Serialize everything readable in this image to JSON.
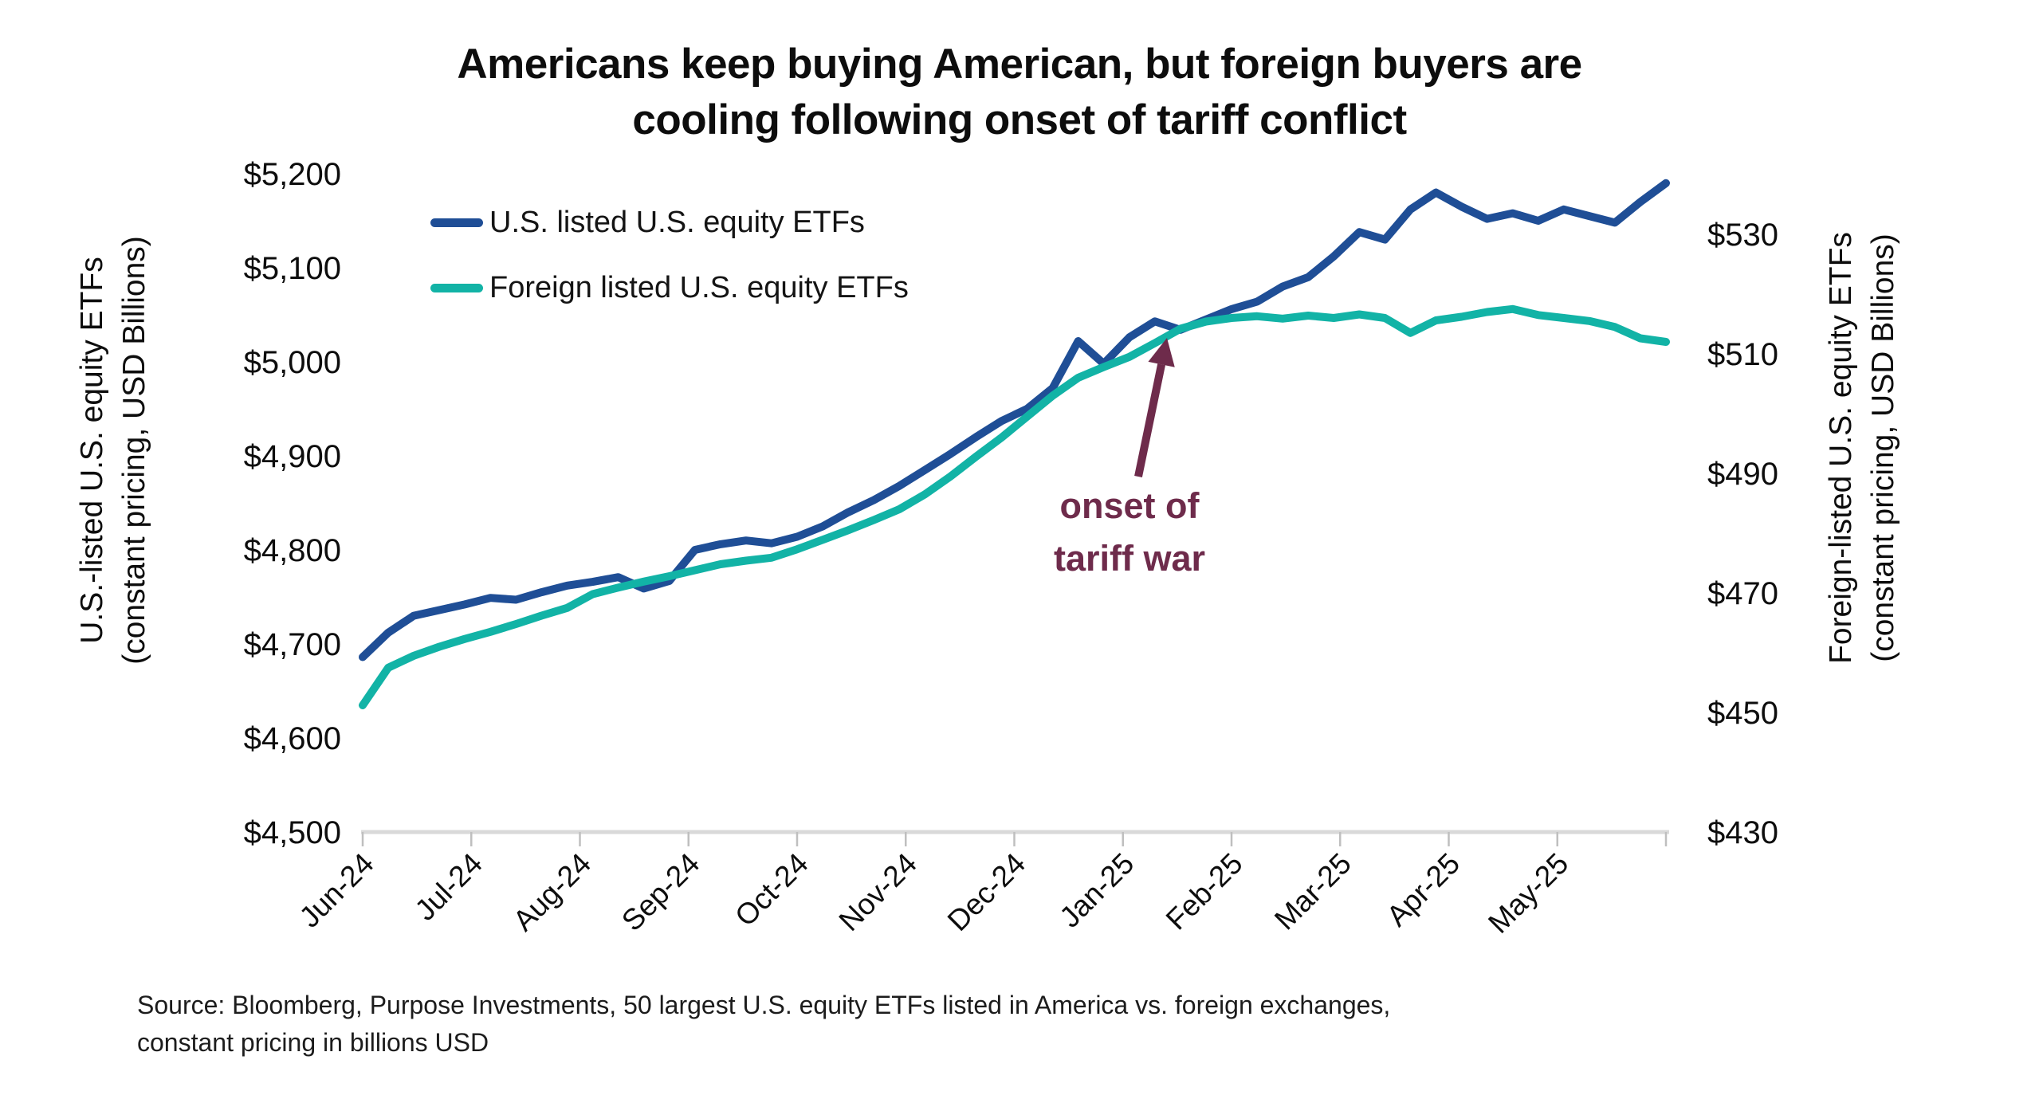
{
  "title": {
    "line1": "Americans keep buying American, but foreign buyers are",
    "line2": "cooling following onset of tariff conflict"
  },
  "legend": {
    "items": [
      {
        "label": "U.S. listed U.S. equity ETFs",
        "color": "#1F4E96"
      },
      {
        "label": "Foreign listed U.S. equity ETFs",
        "color": "#12B3A6"
      }
    ]
  },
  "left_axis": {
    "title_line1": "U.S.-listed U.S. equity ETFs",
    "title_line2": "(constant pricing, USD Billions)",
    "tick_labels": [
      "$4,500",
      "$4,600",
      "$4,700",
      "$4,800",
      "$4,900",
      "$5,000",
      "$5,100",
      "$5,200"
    ],
    "min": 4500,
    "max": 5200,
    "step": 100
  },
  "right_axis": {
    "title_line1": "Foreign-listed U.S. equity ETFs",
    "title_line2": "(constant pricing, USD Billions)",
    "tick_labels": [
      "$430",
      "$450",
      "$470",
      "$490",
      "$510",
      "$530"
    ],
    "min": 430,
    "max": 530,
    "step": 20
  },
  "x_axis": {
    "labels": [
      "Jun-24",
      "Jul-24",
      "Aug-24",
      "Sep-24",
      "Oct-24",
      "Nov-24",
      "Dec-24",
      "Jan-25",
      "Feb-25",
      "Mar-25",
      "Apr-25",
      "May-25"
    ]
  },
  "annotation": {
    "line1": "onset of",
    "line2": "tariff war",
    "color": "#6E2B4B"
  },
  "source": {
    "line1": "Source: Bloomberg, Purpose Investments, 50 largest U.S. equity ETFs listed in America vs. foreign exchanges,",
    "line2": "constant pricing in billions USD"
  },
  "chart_data": {
    "type": "line",
    "x_frequency": "weekly",
    "x_month_labels": [
      "Jun-24",
      "Jul-24",
      "Aug-24",
      "Sep-24",
      "Oct-24",
      "Nov-24",
      "Dec-24",
      "Jan-25",
      "Feb-25",
      "Mar-25",
      "Apr-25",
      "May-25"
    ],
    "title": "Americans keep buying American, but foreign buyers are cooling following onset of tariff conflict",
    "left_ylim": [
      4500,
      5200
    ],
    "right_ylim": [
      430,
      530
    ],
    "grid": false,
    "legend_position": "top-left",
    "annotation_text": "onset of tariff war",
    "series": [
      {
        "name": "U.S. listed U.S. equity ETFs",
        "axis": "left",
        "color": "#1F4E96",
        "values": [
          4686,
          4712,
          4730,
          4736,
          4742,
          4749,
          4747,
          4755,
          4762,
          4766,
          4771,
          4759,
          4767,
          4800,
          4806,
          4810,
          4807,
          4814,
          4825,
          4840,
          4853,
          4868,
          4885,
          4902,
          4920,
          4937,
          4950,
          4972,
          5022,
          4998,
          5026,
          5043,
          5034,
          5045,
          5056,
          5064,
          5080,
          5090,
          5112,
          5138,
          5130,
          5162,
          5180,
          5165,
          5152,
          5158,
          5150,
          5162,
          5155,
          5148,
          5170,
          5190
        ]
      },
      {
        "name": "Foreign listed U.S. equity ETFs",
        "axis": "right",
        "color": "#12B3A6",
        "values": [
          451.2,
          457.5,
          459.5,
          461,
          462.3,
          463.5,
          464.8,
          466.2,
          467.5,
          469.8,
          470.9,
          471.9,
          472.8,
          473.8,
          474.8,
          475.4,
          475.9,
          477.3,
          478.9,
          480.5,
          482.2,
          484,
          486.5,
          489.5,
          492.8,
          496,
          499.5,
          503,
          506,
          507.8,
          509.5,
          511.8,
          514.2,
          515.4,
          516,
          516.3,
          515.9,
          516.4,
          516,
          516.6,
          516,
          513.5,
          515.6,
          516.2,
          517,
          517.5,
          516.5,
          516,
          515.5,
          514.5,
          512.6,
          512
        ]
      }
    ]
  }
}
